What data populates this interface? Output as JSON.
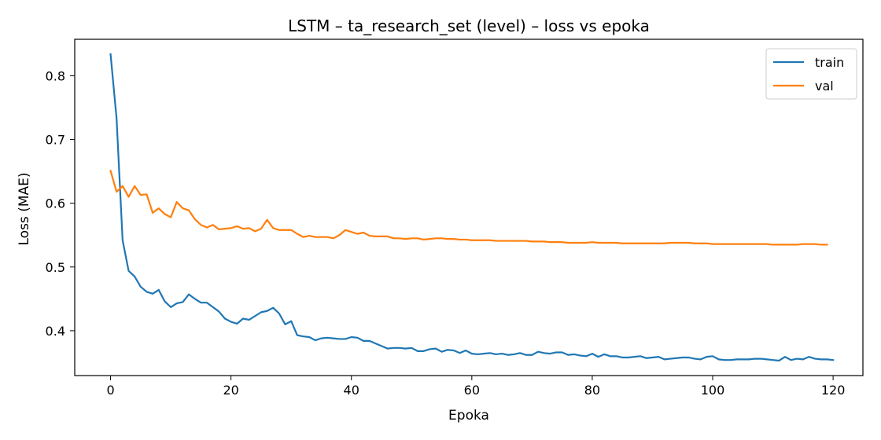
{
  "chart_data": {
    "type": "line",
    "title": "LSTM – ta_research_set (level) – loss vs epoka",
    "xlabel": "Epoka",
    "ylabel": "Loss (MAE)",
    "xlim": [
      -5.95,
      124.95
    ],
    "ylim": [
      0.3296,
      0.8573
    ],
    "xticks": [
      0,
      20,
      40,
      60,
      80,
      100,
      120
    ],
    "yticks": [
      0.4,
      0.5,
      0.6,
      0.7,
      0.8
    ],
    "x_tick_labels": [
      "0",
      "20",
      "40",
      "60",
      "80",
      "100",
      "120"
    ],
    "y_tick_labels": [
      "0.4",
      "0.5",
      "0.6",
      "0.7",
      "0.8"
    ],
    "grid": false,
    "legend_position": "top-right",
    "series": [
      {
        "name": "train",
        "color": "#1f77b4",
        "values": [
          0.834,
          0.733,
          0.542,
          0.494,
          0.485,
          0.469,
          0.461,
          0.458,
          0.464,
          0.446,
          0.437,
          0.443,
          0.445,
          0.457,
          0.45,
          0.444,
          0.444,
          0.437,
          0.43,
          0.419,
          0.414,
          0.411,
          0.419,
          0.417,
          0.423,
          0.429,
          0.431,
          0.436,
          0.427,
          0.41,
          0.415,
          0.393,
          0.391,
          0.39,
          0.385,
          0.388,
          0.389,
          0.388,
          0.387,
          0.387,
          0.39,
          0.389,
          0.384,
          0.384,
          0.38,
          0.376,
          0.372,
          0.373,
          0.373,
          0.372,
          0.373,
          0.368,
          0.368,
          0.371,
          0.372,
          0.367,
          0.37,
          0.369,
          0.365,
          0.369,
          0.364,
          0.363,
          0.364,
          0.365,
          0.363,
          0.364,
          0.362,
          0.363,
          0.365,
          0.362,
          0.362,
          0.367,
          0.365,
          0.364,
          0.366,
          0.366,
          0.362,
          0.363,
          0.361,
          0.36,
          0.364,
          0.359,
          0.363,
          0.36,
          0.36,
          0.358,
          0.358,
          0.359,
          0.36,
          0.357,
          0.358,
          0.359,
          0.355,
          0.356,
          0.357,
          0.358,
          0.358,
          0.356,
          0.355,
          0.359,
          0.36,
          0.355,
          0.354,
          0.354,
          0.355,
          0.355,
          0.355,
          0.356,
          0.356,
          0.355,
          0.354,
          0.353,
          0.359,
          0.354,
          0.356,
          0.355,
          0.359,
          0.356,
          0.355,
          0.355,
          0.354
        ]
      },
      {
        "name": "val",
        "color": "#ff7f0e",
        "values": [
          0.651,
          0.618,
          0.627,
          0.61,
          0.627,
          0.613,
          0.614,
          0.585,
          0.592,
          0.583,
          0.578,
          0.602,
          0.592,
          0.589,
          0.575,
          0.566,
          0.562,
          0.566,
          0.559,
          0.56,
          0.561,
          0.564,
          0.56,
          0.561,
          0.556,
          0.56,
          0.574,
          0.561,
          0.558,
          0.558,
          0.558,
          0.552,
          0.547,
          0.549,
          0.547,
          0.547,
          0.547,
          0.545,
          0.55,
          0.558,
          0.555,
          0.552,
          0.554,
          0.549,
          0.548,
          0.548,
          0.548,
          0.545,
          0.545,
          0.544,
          0.545,
          0.545,
          0.543,
          0.544,
          0.545,
          0.545,
          0.544,
          0.544,
          0.543,
          0.543,
          0.542,
          0.542,
          0.542,
          0.542,
          0.541,
          0.541,
          0.541,
          0.541,
          0.541,
          0.541,
          0.54,
          0.54,
          0.54,
          0.539,
          0.539,
          0.539,
          0.538,
          0.538,
          0.538,
          0.538,
          0.539,
          0.538,
          0.538,
          0.538,
          0.538,
          0.537,
          0.537,
          0.537,
          0.537,
          0.537,
          0.537,
          0.537,
          0.537,
          0.538,
          0.538,
          0.538,
          0.538,
          0.537,
          0.537,
          0.537,
          0.536,
          0.536,
          0.536,
          0.536,
          0.536,
          0.536,
          0.536,
          0.536,
          0.536,
          0.536,
          0.535,
          0.535,
          0.535,
          0.535,
          0.535,
          0.536,
          0.536,
          0.536,
          0.535,
          0.535
        ]
      }
    ]
  }
}
